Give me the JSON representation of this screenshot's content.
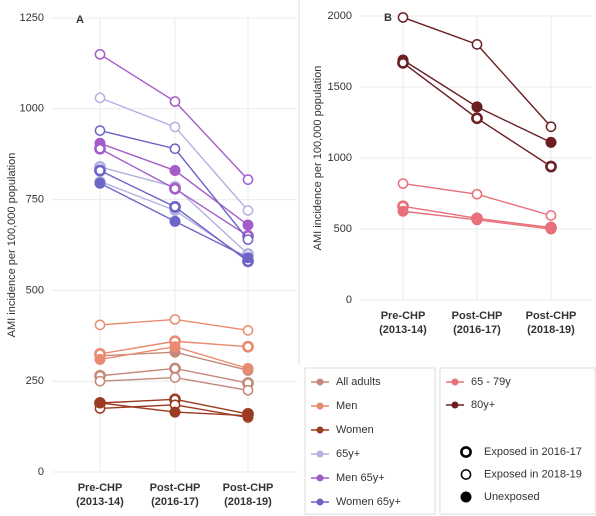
{
  "chart_data": [
    {
      "type": "line",
      "title": "A",
      "y_label": "AMI incidence per 100,000 population",
      "categories": [
        [
          "Pre-CHP",
          "(2013-14)"
        ],
        [
          "Post-CHP",
          "(2016-17)"
        ],
        [
          "Post-CHP",
          "(2018-19)"
        ]
      ],
      "ylim": [
        0,
        1250
      ],
      "yticks": [
        0,
        250,
        500,
        750,
        1000,
        1250
      ],
      "grid": true,
      "series": [
        {
          "name": "All adults",
          "color": "#c4897a",
          "marker": 0,
          "values": [
            265,
            285,
            245
          ]
        },
        {
          "name": "All adults",
          "color": "#c4897a",
          "marker": 1,
          "values": [
            250,
            260,
            225
          ]
        },
        {
          "name": "All adults",
          "color": "#c4897a",
          "marker": 2,
          "values": [
            320,
            330,
            280
          ]
        },
        {
          "name": "Men",
          "color": "#ea8a70",
          "marker": 1,
          "values": [
            405,
            420,
            390
          ]
        },
        {
          "name": "Men",
          "color": "#ea8a70",
          "marker": 0,
          "values": [
            325,
            360,
            345
          ]
        },
        {
          "name": "Men",
          "color": "#ea8a70",
          "marker": 2,
          "values": [
            310,
            345,
            285
          ]
        },
        {
          "name": "Women",
          "color": "#9b3b22",
          "marker": 0,
          "values": [
            190,
            200,
            160
          ]
        },
        {
          "name": "Women",
          "color": "#9b3b22",
          "marker": 1,
          "values": [
            175,
            185,
            150
          ]
        },
        {
          "name": "Women",
          "color": "#9b3b22",
          "marker": 2,
          "values": [
            190,
            165,
            155
          ]
        },
        {
          "name": "65y+",
          "color": "#b5b0e2",
          "marker": 1,
          "values": [
            1030,
            950,
            720
          ]
        },
        {
          "name": "65y+",
          "color": "#b5b0e2",
          "marker": 0,
          "values": [
            840,
            785,
            600
          ]
        },
        {
          "name": "65y+",
          "color": "#b5b0e2",
          "marker": 2,
          "values": [
            800,
            720,
            585
          ]
        },
        {
          "name": "Men 65y+",
          "color": "#a45cc9",
          "marker": 1,
          "values": [
            1150,
            1020,
            805
          ]
        },
        {
          "name": "Men 65y+",
          "color": "#a45cc9",
          "marker": 2,
          "values": [
            905,
            830,
            680
          ]
        },
        {
          "name": "Men 65y+",
          "color": "#a45cc9",
          "marker": 0,
          "values": [
            890,
            780,
            650
          ]
        },
        {
          "name": "Women 65y+",
          "color": "#6c64c6",
          "marker": 1,
          "values": [
            940,
            890,
            640
          ]
        },
        {
          "name": "Women 65y+",
          "color": "#6c64c6",
          "marker": 0,
          "values": [
            830,
            730,
            580
          ]
        },
        {
          "name": "Women 65y+",
          "color": "#6c64c6",
          "marker": 2,
          "values": [
            795,
            690,
            590
          ]
        }
      ]
    },
    {
      "type": "line",
      "title": "B",
      "y_label": "AMI incidence per 100,000 population",
      "categories": [
        [
          "Pre-CHP",
          "(2013-14)"
        ],
        [
          "Post-CHP",
          "(2016-17)"
        ],
        [
          "Post-CHP",
          "(2018-19)"
        ]
      ],
      "ylim": [
        0,
        2000
      ],
      "yticks": [
        0,
        500,
        1000,
        1500,
        2000
      ],
      "grid": true,
      "series": [
        {
          "name": "65 - 79y",
          "color": "#e8707a",
          "marker": 1,
          "values": [
            820,
            745,
            595
          ]
        },
        {
          "name": "65 - 79y",
          "color": "#e8707a",
          "marker": 0,
          "values": [
            660,
            575,
            510
          ]
        },
        {
          "name": "65 - 79y",
          "color": "#e8707a",
          "marker": 2,
          "values": [
            625,
            565,
            500
          ]
        },
        {
          "name": "80y+",
          "color": "#6b1f22",
          "marker": 1,
          "values": [
            1990,
            1800,
            1220
          ]
        },
        {
          "name": "80y+",
          "color": "#6b1f22",
          "marker": 2,
          "values": [
            1690,
            1360,
            1110
          ]
        },
        {
          "name": "80y+",
          "color": "#6b1f22",
          "marker": 0,
          "values": [
            1670,
            1280,
            940
          ]
        }
      ]
    }
  ],
  "marker_legend": [
    "Exposed in 2016-17",
    "Exposed in 2018-19",
    "Unexposed"
  ]
}
